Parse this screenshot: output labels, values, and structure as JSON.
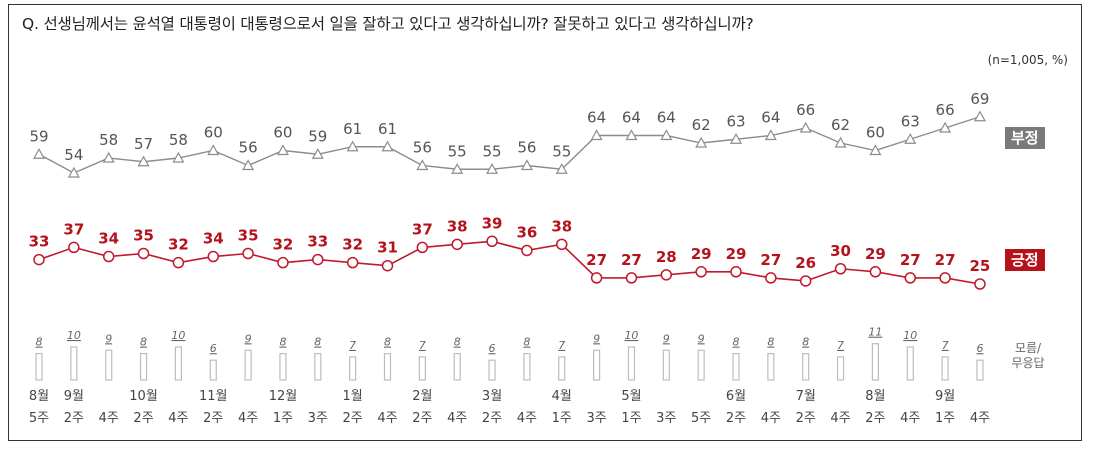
{
  "question": "Q. 선생님께서는 윤석열 대통령이 대통령으로서 일을 잘하고 있다고 생각하십니까? 잘못하고 있다고 생각하십니까?",
  "unit_note": "(n=1,005,  %)",
  "labels": {
    "negative": "부정",
    "positive": "긍정",
    "dont_know": "모름/\n무응답"
  },
  "colors": {
    "negative_line": "#8c8c8c",
    "negative_tag": "#7a7a7a",
    "positive_line": "#c0192b",
    "positive_text": "#b5121b",
    "dk_bar": "#bdbdbd"
  },
  "chart_data": {
    "type": "line",
    "x_months": [
      "8월",
      "9월",
      "",
      "10월",
      "",
      "11월",
      "",
      "12월",
      "",
      "1월",
      "",
      "2월",
      "",
      "3월",
      "",
      "4월",
      "",
      "5월",
      "",
      "",
      "6월",
      "",
      "7월",
      "",
      "8월",
      "",
      "9월",
      ""
    ],
    "x_weeks": [
      "5주",
      "2주",
      "4주",
      "2주",
      "4주",
      "2주",
      "4주",
      "1주",
      "3주",
      "2주",
      "4주",
      "2주",
      "4주",
      "2주",
      "4주",
      "1주",
      "3주",
      "1주",
      "3주",
      "5주",
      "2주",
      "4주",
      "2주",
      "4주",
      "2주",
      "4주",
      "1주",
      "4주"
    ],
    "series": [
      {
        "name": "부정",
        "values": [
          59,
          54,
          58,
          57,
          58,
          60,
          56,
          60,
          59,
          61,
          61,
          56,
          55,
          55,
          56,
          55,
          64,
          64,
          64,
          62,
          63,
          64,
          66,
          62,
          60,
          63,
          66,
          69
        ]
      },
      {
        "name": "긍정",
        "values": [
          33,
          37,
          34,
          35,
          32,
          34,
          35,
          32,
          33,
          32,
          31,
          37,
          38,
          39,
          36,
          38,
          27,
          27,
          28,
          29,
          29,
          27,
          26,
          30,
          29,
          27,
          27,
          25
        ]
      },
      {
        "name": "모름/무응답",
        "type": "bar",
        "values": [
          8,
          10,
          9,
          8,
          10,
          6,
          9,
          8,
          8,
          7,
          8,
          7,
          8,
          6,
          8,
          7,
          9,
          10,
          9,
          9,
          8,
          8,
          8,
          7,
          11,
          10,
          7,
          6
        ]
      }
    ]
  }
}
